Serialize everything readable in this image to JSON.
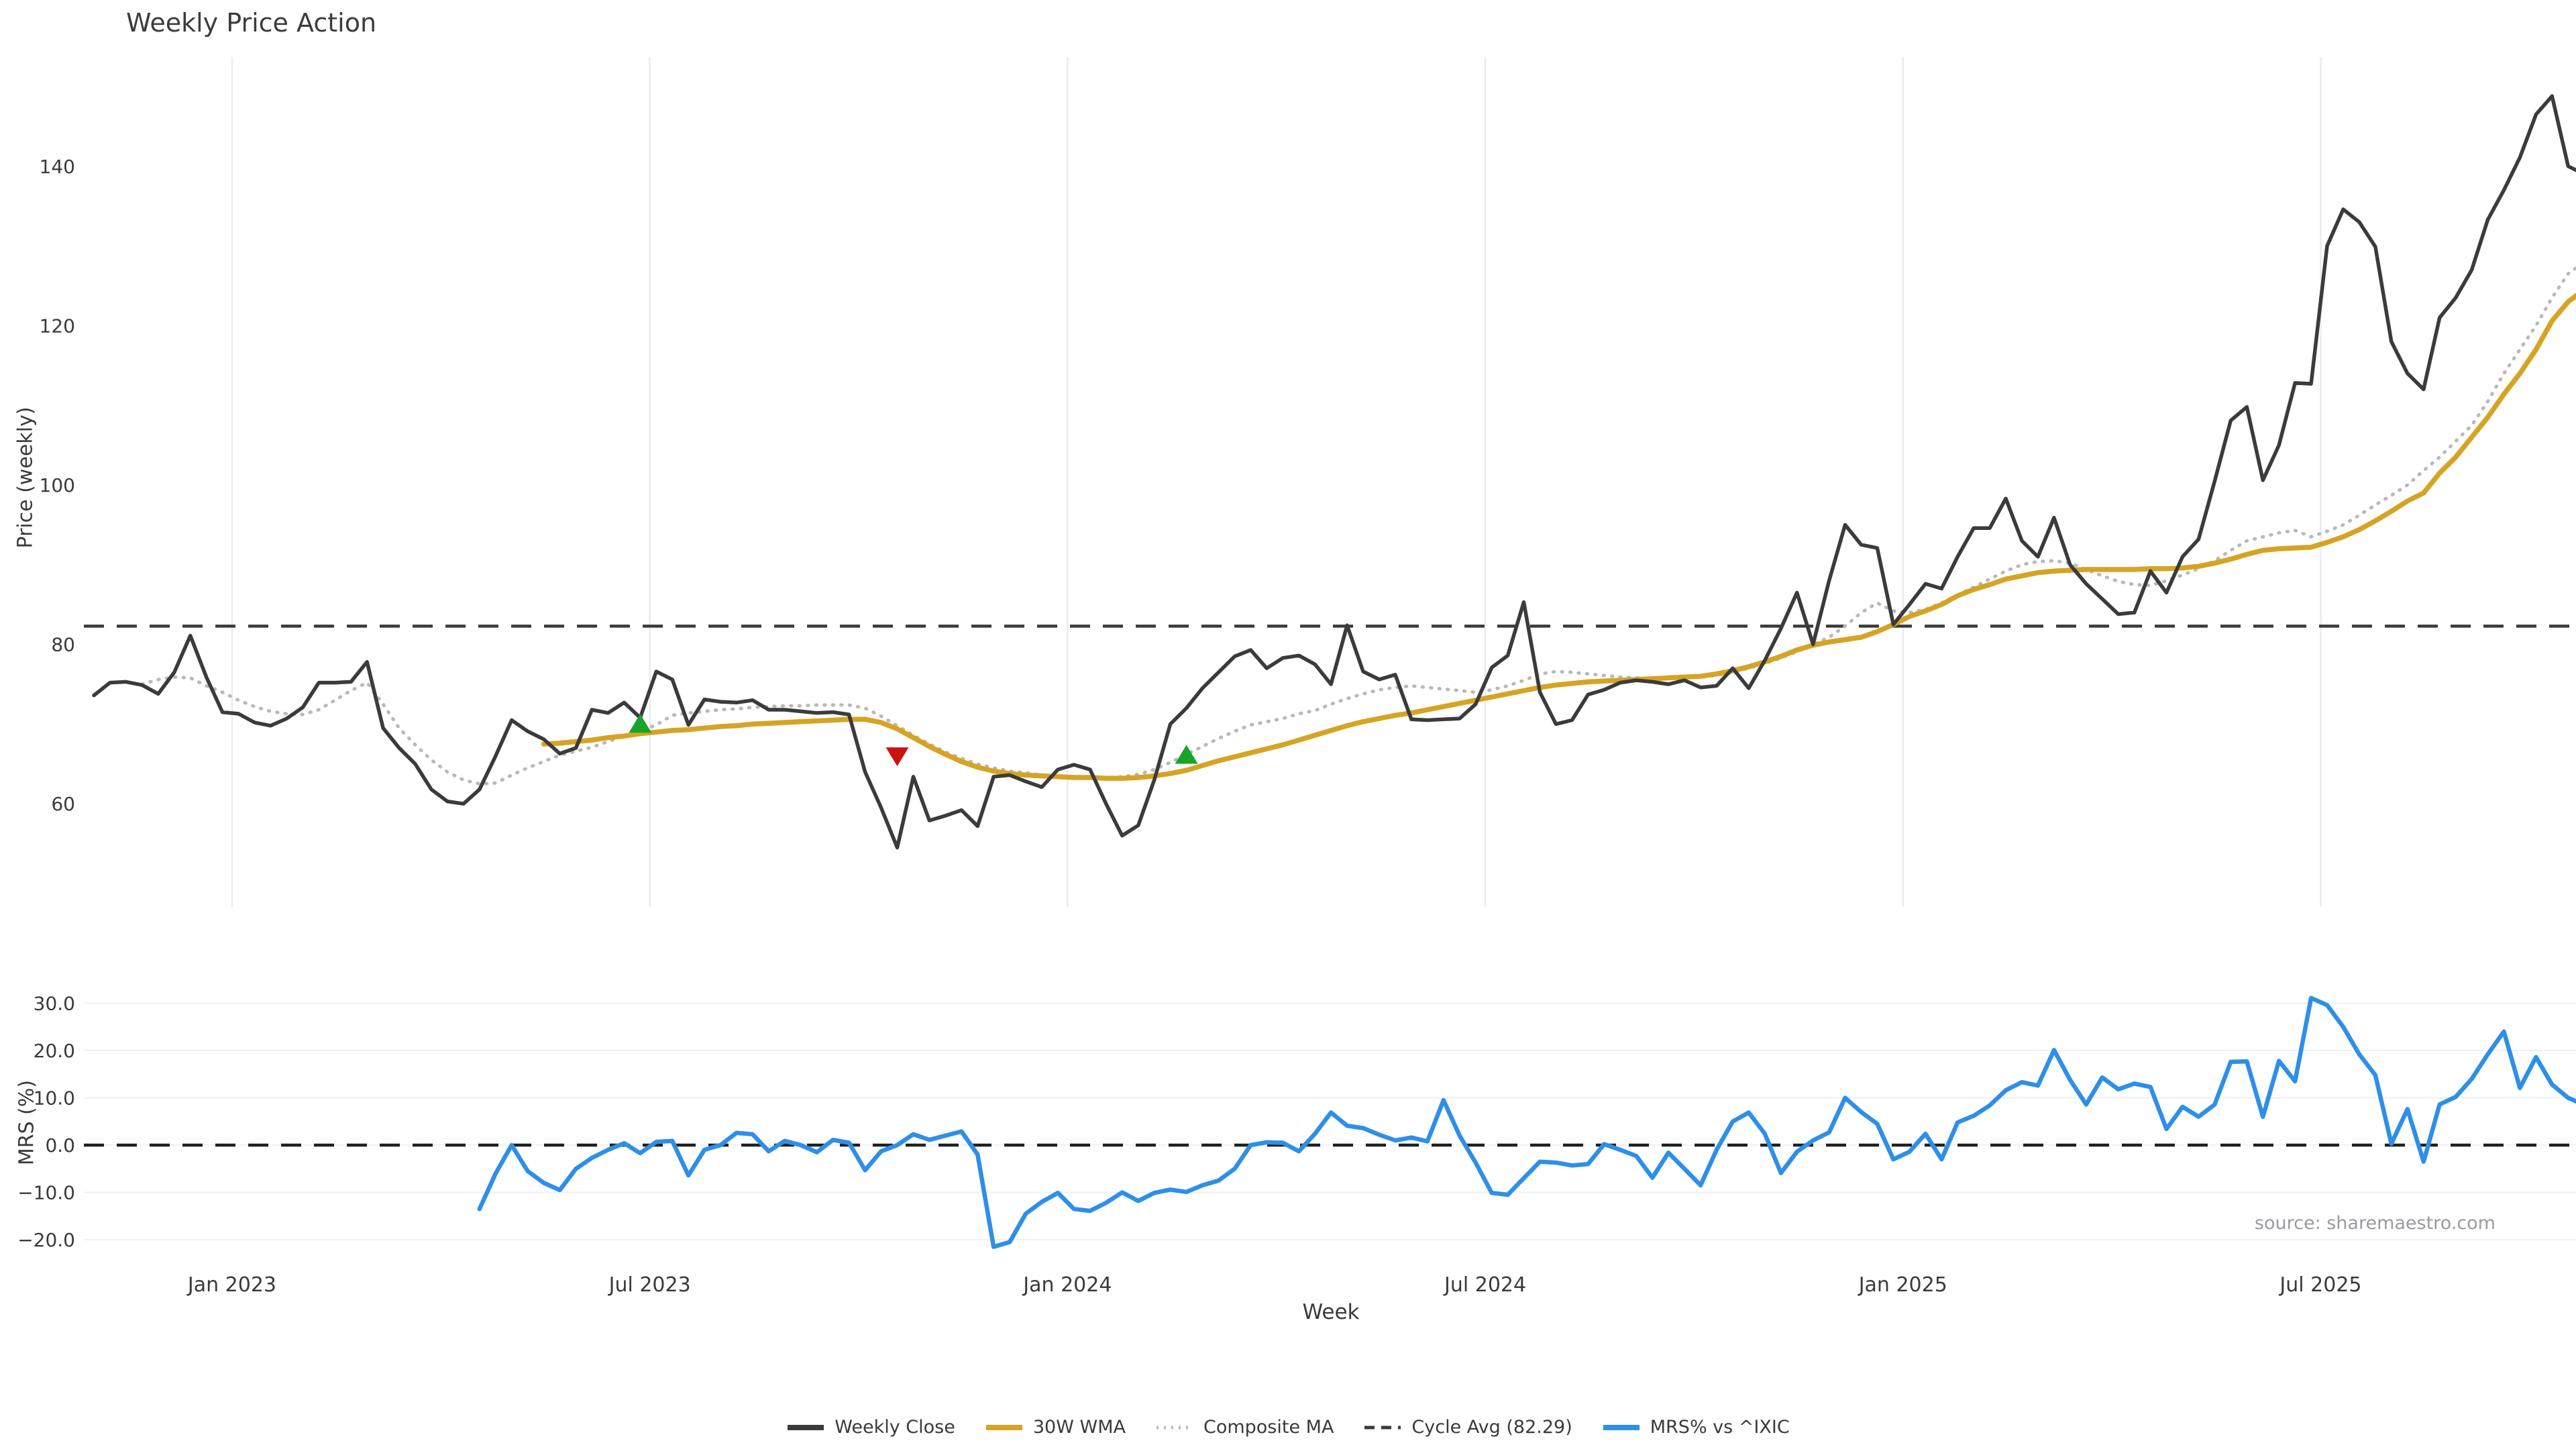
{
  "title": "Weekly Price Action",
  "source_note": "source: sharemaestro.com",
  "colors": {
    "close": "#3b3b3b",
    "wma": "#d6a424",
    "composite": "#b9b9b9",
    "cycle": "#3a3a3a",
    "mrs": "#2e8fe8",
    "buy": "#17a527",
    "sell": "#cc1111",
    "grid": "#ebebf0",
    "text": "#3a3a3a",
    "muted": "#9a9aa2"
  },
  "legend": {
    "items": [
      {
        "label": "Weekly Close",
        "color": "#3b3b3b",
        "style": "solid"
      },
      {
        "label": "30W WMA",
        "color": "#d6a424",
        "style": "solid"
      },
      {
        "label": "Composite MA",
        "color": "#b9b9b9",
        "style": "dotted"
      },
      {
        "label": "Cycle Avg (82.29)",
        "color": "#3a3a3a",
        "style": "dashed"
      },
      {
        "label": "MRS% vs ^IXIC",
        "color": "#2e8fe8",
        "style": "solid"
      }
    ]
  },
  "chart_data": [
    {
      "type": "line",
      "panel": "price",
      "title": "Weekly Price Action",
      "xlabel": "Week",
      "ylabel": "Price (weekly)",
      "ylim": [
        52,
        153
      ],
      "yticks": [
        60,
        80,
        100,
        120,
        140
      ],
      "xtick_labels": [
        "Jan 2023",
        "Jul 2023",
        "Jan 2024",
        "Jul 2024",
        "Jan 2025",
        "Jul 2025"
      ],
      "xtick_weeks": [
        8.6,
        34.6,
        60.6,
        86.6,
        112.6,
        138.6
      ],
      "grid": "vertical",
      "cycle_avg": 82.29,
      "series": [
        {
          "name": "Weekly Close",
          "start_week": 0,
          "values": [
            73.6,
            75.2,
            75.3,
            74.9,
            73.8,
            76.5,
            81.1,
            75.9,
            71.5,
            71.3,
            70.2,
            69.8,
            70.7,
            72.1,
            75.2,
            75.2,
            75.3,
            77.8,
            69.5,
            67.0,
            65.0,
            61.8,
            60.3,
            60.0,
            61.8,
            66.0,
            70.5,
            69.1,
            68.1,
            66.3,
            67.0,
            71.8,
            71.4,
            72.7,
            70.8,
            76.6,
            75.6,
            69.9,
            73.1,
            72.8,
            72.7,
            73.0,
            71.8,
            71.8,
            71.6,
            71.4,
            71.5,
            71.2,
            64.0,
            59.5,
            54.5,
            63.4,
            57.9,
            58.5,
            59.2,
            57.2,
            63.4,
            63.6,
            62.8,
            62.1,
            64.3,
            64.9,
            64.3,
            60.0,
            56.0,
            57.3,
            63.0,
            70.0,
            72.0,
            74.5,
            76.5,
            78.5,
            79.3,
            77.0,
            78.3,
            78.6,
            77.5,
            75.0,
            82.4,
            76.6,
            75.6,
            76.2,
            70.6,
            70.5,
            70.6,
            70.7,
            72.5,
            77.1,
            78.6,
            85.3,
            74.0,
            70.0,
            70.5,
            73.7,
            74.3,
            75.2,
            75.5,
            75.3,
            75.0,
            75.5,
            74.6,
            74.8,
            77.0,
            74.5,
            78.0,
            82.0,
            86.5,
            80.0,
            88.0,
            95.0,
            92.5,
            92.1,
            82.5,
            85.0,
            87.6,
            87.0,
            91.0,
            94.6,
            94.6,
            98.3,
            93.0,
            91.0,
            95.9,
            90.0,
            87.6,
            85.7,
            83.8,
            84.0,
            89.2,
            86.5,
            91.0,
            93.2,
            100.5,
            108.1,
            109.8,
            100.6,
            105.0,
            112.8,
            112.7,
            130.0,
            134.6,
            133.0,
            129.9,
            118.0,
            114.0,
            112.0,
            121.0,
            123.5,
            127.0,
            133.3,
            137.0,
            141.1,
            146.5,
            148.8,
            140.0,
            139.0
          ]
        },
        {
          "name": "30W WMA",
          "start_week": 28,
          "values": [
            67.5,
            67.6,
            67.8,
            68.0,
            68.3,
            68.5,
            68.8,
            69.0,
            69.2,
            69.3,
            69.5,
            69.7,
            69.8,
            70.0,
            70.1,
            70.2,
            70.3,
            70.4,
            70.5,
            70.6,
            70.6,
            70.2,
            69.4,
            68.3,
            67.2,
            66.2,
            65.3,
            64.6,
            64.1,
            63.8,
            63.6,
            63.5,
            63.4,
            63.3,
            63.3,
            63.2,
            63.2,
            63.3,
            63.5,
            63.8,
            64.2,
            64.8,
            65.4,
            65.9,
            66.4,
            66.9,
            67.4,
            68.0,
            68.6,
            69.2,
            69.8,
            70.3,
            70.7,
            71.1,
            71.4,
            71.8,
            72.2,
            72.6,
            73.0,
            73.4,
            73.8,
            74.2,
            74.6,
            74.9,
            75.1,
            75.3,
            75.4,
            75.5,
            75.6,
            75.7,
            75.8,
            75.9,
            76.0,
            76.3,
            76.7,
            77.2,
            77.8,
            78.5,
            79.3,
            79.9,
            80.3,
            80.6,
            80.9,
            81.6,
            82.5,
            83.5,
            84.2,
            85.0,
            86.1,
            86.9,
            87.5,
            88.2,
            88.6,
            89.0,
            89.2,
            89.3,
            89.4,
            89.4,
            89.4,
            89.4,
            89.5,
            89.5,
            89.6,
            89.8,
            90.2,
            90.7,
            91.3,
            91.8,
            92.0,
            92.1,
            92.2,
            92.8,
            93.5,
            94.4,
            95.5,
            96.7,
            98.0,
            99.0,
            101.5,
            103.5,
            106.0,
            108.5,
            111.4,
            114.0,
            117.0,
            120.6,
            123.0,
            124.5
          ]
        },
        {
          "name": "Composite MA",
          "start_week": 3,
          "values": [
            75.0,
            75.6,
            75.9,
            75.8,
            74.8,
            74.0,
            73.0,
            72.2,
            71.6,
            71.3,
            71.2,
            71.8,
            73.0,
            74.2,
            75.2,
            72.5,
            69.5,
            67.4,
            65.5,
            64.0,
            63.0,
            62.5,
            62.6,
            63.6,
            64.5,
            65.3,
            66.1,
            66.6,
            67.1,
            67.8,
            68.5,
            69.1,
            69.9,
            71.1,
            71.4,
            71.6,
            71.8,
            71.9,
            72.1,
            72.2,
            72.3,
            72.3,
            72.4,
            72.4,
            72.4,
            72.0,
            71.0,
            69.8,
            68.6,
            67.5,
            66.5,
            65.7,
            65.0,
            64.5,
            64.1,
            63.9,
            63.6,
            63.5,
            63.4,
            63.3,
            63.3,
            63.4,
            63.7,
            64.3,
            65.2,
            66.2,
            67.2,
            68.2,
            69.1,
            69.9,
            70.3,
            70.7,
            71.3,
            71.7,
            72.5,
            73.2,
            73.8,
            74.3,
            74.6,
            74.8,
            74.6,
            74.4,
            74.2,
            74.0,
            74.3,
            74.8,
            75.5,
            76.3,
            76.6,
            76.5,
            76.3,
            76.1,
            75.9,
            75.8,
            75.7,
            75.7,
            75.8,
            75.9,
            76.1,
            76.5,
            77.0,
            77.6,
            78.3,
            79.1,
            80.0,
            80.9,
            82.3,
            84.0,
            85.2,
            84.2,
            84.0,
            84.4,
            85.2,
            86.2,
            87.2,
            88.2,
            89.2,
            90.0,
            90.4,
            90.5,
            90.2,
            89.4,
            88.6,
            87.9,
            87.5,
            87.4,
            88.0,
            88.7,
            89.5,
            90.5,
            91.8,
            93.0,
            93.5,
            94.0,
            94.3,
            93.5,
            94.2,
            95.0,
            96.2,
            97.5,
            98.7,
            100.0,
            101.8,
            103.5,
            105.5,
            107.5,
            110.5,
            114.0,
            117.0,
            120.0,
            123.5,
            126.5,
            128.0
          ]
        }
      ],
      "markers": {
        "buy": [
          {
            "week": 34,
            "price": 70.1
          },
          {
            "week": 68,
            "price": 66.2
          }
        ],
        "sell": [
          {
            "week": 50,
            "price": 65.9
          }
        ]
      }
    },
    {
      "type": "line",
      "panel": "mrs",
      "ylabel": "MRS (%)",
      "ylim": [
        -27,
        35
      ],
      "yticks": [
        30.0,
        20.0,
        10.0,
        0.0,
        -10.0,
        -20.0
      ],
      "ytick_labels": [
        "30.0",
        "20.0",
        "10.0",
        "0.0",
        "−10.0",
        "−20.0"
      ],
      "grid": "horizontal",
      "zero_line": 0.0,
      "series": [
        {
          "name": "MRS% vs ^IXIC",
          "start_week": 24,
          "values": [
            -13.5,
            -6.0,
            0.0,
            -5.5,
            -8.0,
            -9.5,
            -5.0,
            -2.7,
            -1.0,
            0.4,
            -1.7,
            0.7,
            0.9,
            -6.4,
            -1.0,
            0.0,
            2.6,
            2.3,
            -1.3,
            0.9,
            0.0,
            -1.5,
            1.1,
            0.5,
            -5.3,
            -1.3,
            0.0,
            2.3,
            1.1,
            2.0,
            2.9,
            -2.0,
            -21.5,
            -20.5,
            -14.5,
            -12.0,
            -10.1,
            -13.5,
            -13.9,
            -12.2,
            -10.0,
            -11.8,
            -10.1,
            -9.4,
            -9.9,
            -8.5,
            -7.5,
            -5.0,
            0.0,
            0.6,
            0.5,
            -1.3,
            2.4,
            6.9,
            4.1,
            3.6,
            2.2,
            1.0,
            1.6,
            0.8,
            9.5,
            2.0,
            -3.7,
            -10.1,
            -10.5,
            -7.0,
            -3.5,
            -3.7,
            -4.3,
            -4.0,
            0.2,
            -1.0,
            -2.3,
            -6.9,
            -1.6,
            -5.0,
            -8.5,
            -1.0,
            5.0,
            6.9,
            2.4,
            -5.9,
            -1.4,
            1.0,
            2.7,
            10.0,
            7.0,
            4.5,
            -3.0,
            -1.4,
            2.4,
            -3.0,
            4.8,
            6.2,
            8.4,
            11.6,
            13.3,
            12.6,
            20.1,
            13.8,
            8.6,
            14.3,
            11.8,
            13.0,
            12.3,
            3.4,
            8.1,
            6.0,
            8.6,
            17.6,
            17.7,
            6.0,
            17.8,
            13.5,
            31.1,
            29.6,
            25.0,
            19.2,
            14.8,
            0.3,
            7.6,
            -3.5,
            8.6,
            10.2,
            14.0,
            19.2,
            24.0,
            12.1,
            18.6,
            12.8,
            10.0,
            8.5
          ]
        }
      ]
    }
  ],
  "axes_text": {
    "price_ylabel": "Price (weekly)",
    "mrs_ylabel": "MRS (%)",
    "xlabel": "Week"
  }
}
